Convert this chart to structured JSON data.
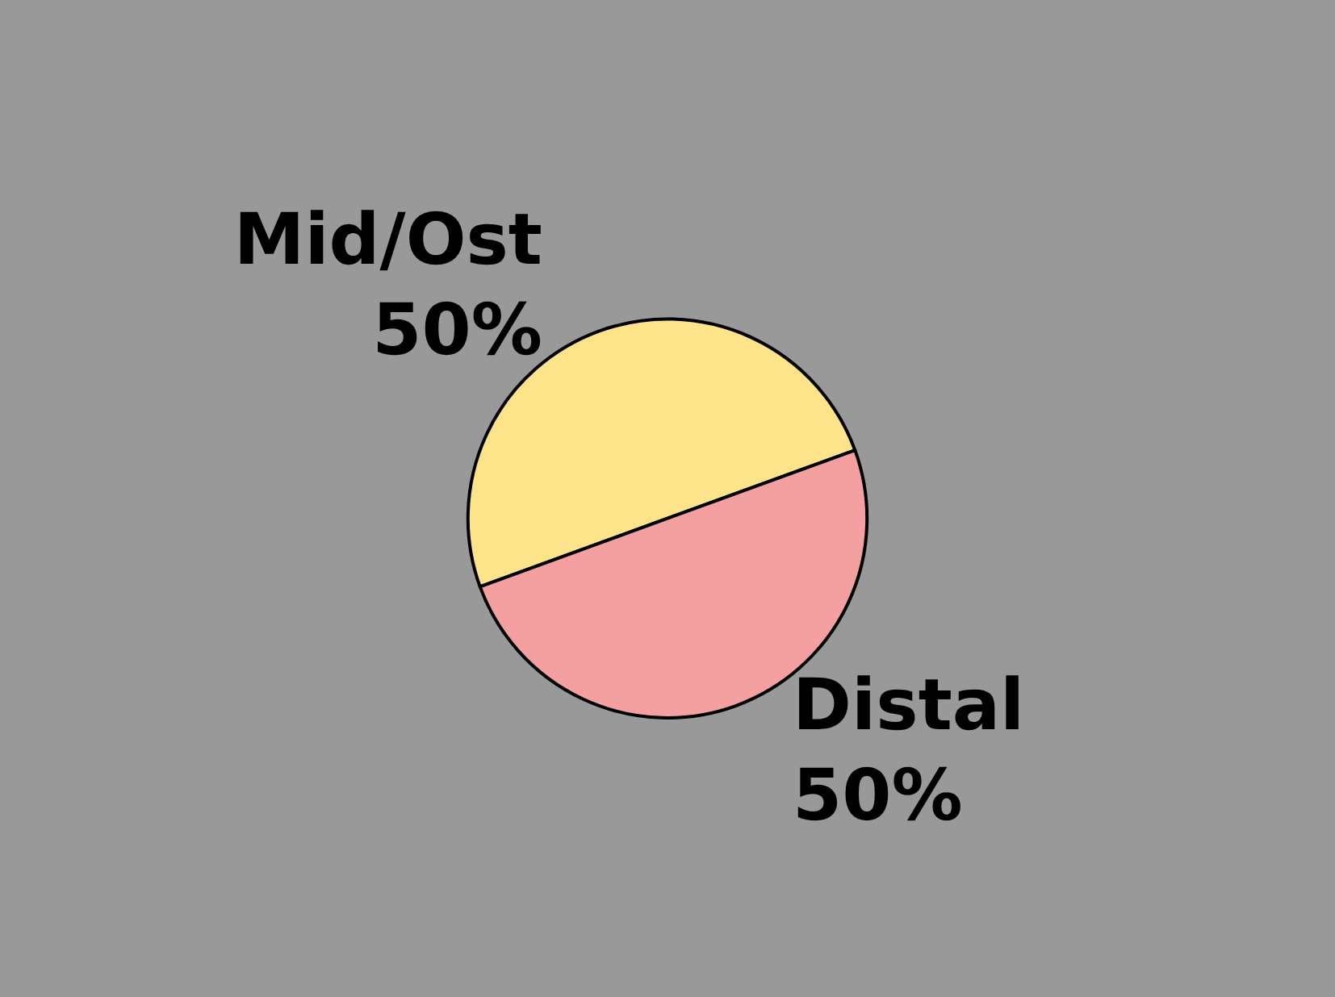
{
  "chart_data": {
    "type": "pie",
    "categories": [
      "Mid/Ost",
      "Distal"
    ],
    "values": [
      50,
      50
    ],
    "colors": [
      "#fde48a",
      "#f4a0a0"
    ],
    "value_labels": [
      "50%",
      "50%"
    ]
  }
}
